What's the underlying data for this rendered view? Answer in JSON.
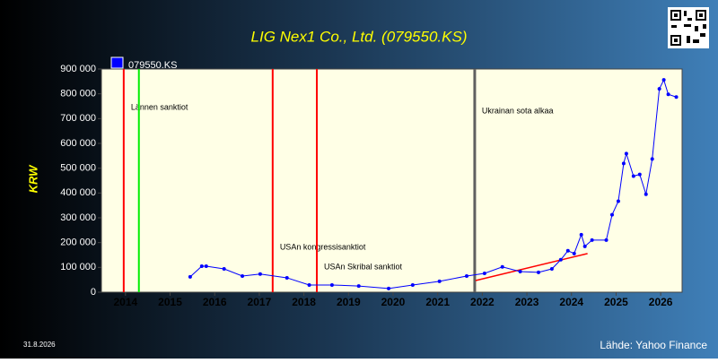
{
  "chart_data": {
    "type": "line",
    "title": "LIG Nex1 Co., Ltd. (079550.KS)",
    "y_label": "KRW",
    "date": "31.8.2026",
    "source": "Lähde: Yahoo Finance",
    "xlim": [
      2013.46,
      2026.48
    ],
    "xticks": [
      2014,
      2015,
      2016,
      2017,
      2018,
      2019,
      2020,
      2021,
      2022,
      2023,
      2024,
      2025,
      2026
    ],
    "ylim": [
      0,
      900000
    ],
    "yticks": [
      0,
      {
        "value": 100000,
        "label": "100 000"
      },
      {
        "value": 200000,
        "label": "200 000"
      },
      {
        "value": 300000,
        "label": "300 000"
      },
      {
        "value": 400000,
        "label": "400 000"
      },
      {
        "value": 500000,
        "label": "500 000"
      },
      {
        "value": 600000,
        "label": "600 000"
      },
      {
        "value": 700000,
        "label": "700 000"
      },
      {
        "value": 800000,
        "label": "800 000"
      },
      {
        "value": 900000,
        "label": "900 000"
      }
    ],
    "grid": false,
    "legend": "top-left",
    "series": [
      {
        "name": "079550.KS",
        "color": "#0000ff",
        "x": [
          2015.45,
          2015.71,
          2015.81,
          2016.21,
          2016.62,
          2017.02,
          2017.62,
          2018.12,
          2018.63,
          2019.23,
          2019.9,
          2020.44,
          2021.04,
          2021.65,
          2022.05,
          2022.45,
          2022.85,
          2023.26,
          2023.56,
          2023.76,
          2023.92,
          2024.06,
          2024.22,
          2024.3,
          2024.46,
          2024.78,
          2024.91,
          2025.05,
          2025.17,
          2025.23,
          2025.39,
          2025.53,
          2025.67,
          2025.81,
          2025.97,
          2026.07,
          2026.17,
          2026.35
        ],
        "values": [
          62000,
          105000,
          105000,
          94000,
          65000,
          73000,
          58000,
          29000,
          29000,
          25000,
          15000,
          29000,
          44000,
          65000,
          76000,
          102000,
          83000,
          80000,
          94000,
          131000,
          167000,
          156000,
          232000,
          185000,
          210000,
          210000,
          312000,
          367000,
          519000,
          559000,
          468000,
          475000,
          395000,
          537000,
          820000,
          856000,
          798000,
          787000
        ]
      }
    ],
    "trend": {
      "color": "#ff0000",
      "x": [
        2021.85,
        2024.36
      ],
      "values": [
        47000,
        156000
      ]
    },
    "events": [
      {
        "x": 2013.96,
        "color": "#ff0000",
        "label": "Lännen sanktiot"
      },
      {
        "x": 2014.3,
        "color": "#00ee00"
      },
      {
        "x": 2017.3,
        "color": "#ff0000",
        "label": "USAn kongressisanktiot"
      },
      {
        "x": 2018.29,
        "color": "#ff0000",
        "label": "USAn Skribal sanktiot"
      },
      {
        "x": 2021.83,
        "color": "#606060",
        "label": "Ukrainan sota alkaa"
      }
    ]
  }
}
